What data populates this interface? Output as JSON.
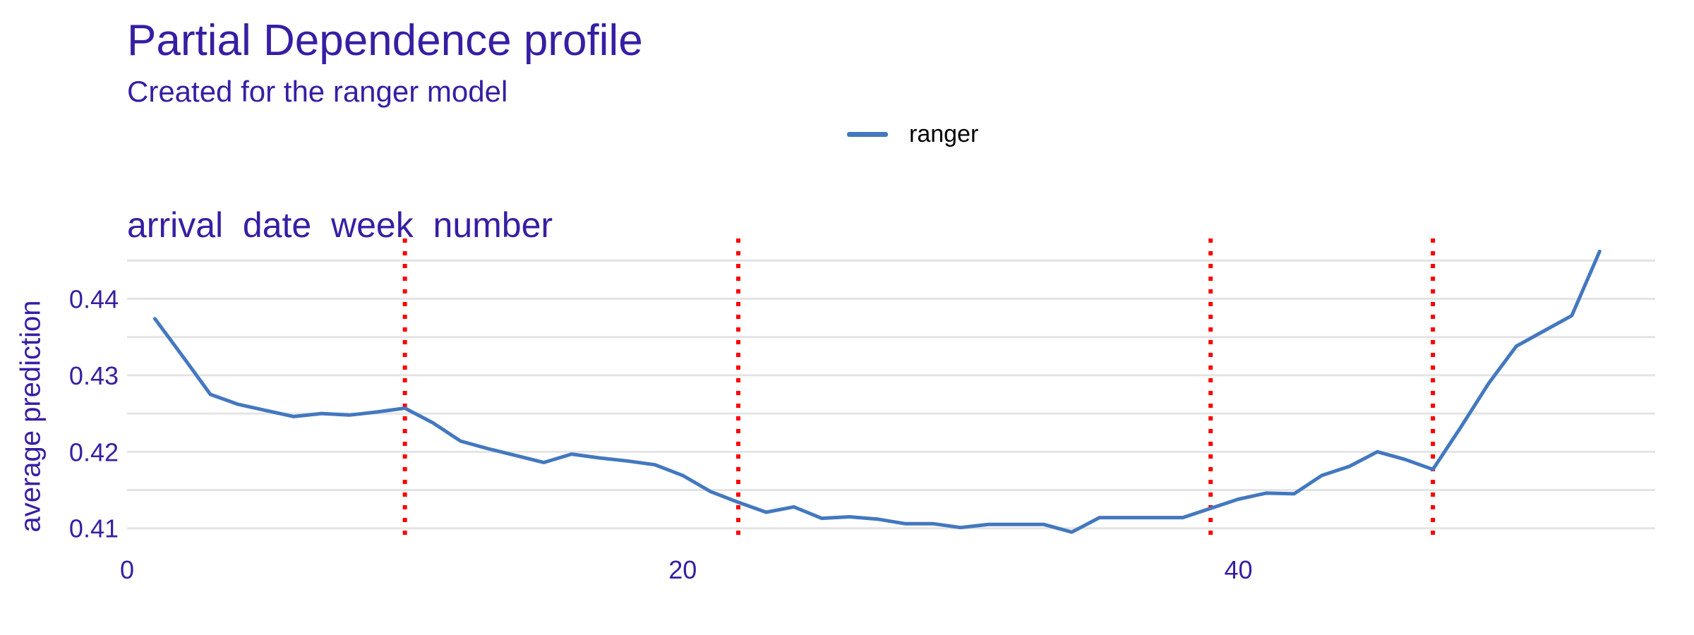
{
  "colors": {
    "text": "#371ea3",
    "line": "#4378bf",
    "cutoff": "#ff0000",
    "grid": "#e4e4e4",
    "background": "#ffffff"
  },
  "chart_data": {
    "type": "line",
    "title": "Partial Dependence profile",
    "subtitle": "Created for the ranger model",
    "panel_title": "arrival  date  week  number",
    "xlabel": "",
    "ylabel": "average prediction",
    "xlim": [
      0,
      55
    ],
    "ylim": [
      0.4085,
      0.4477
    ],
    "x_ticks": [
      0,
      20,
      40
    ],
    "y_ticks": [
      0.41,
      0.42,
      0.43,
      0.44
    ],
    "y_tick_labels": [
      "0.41",
      "0.42",
      "0.43",
      "0.44"
    ],
    "x_tick_labels": [
      "0",
      "20",
      "40"
    ],
    "grid": true,
    "legend": {
      "position": "top",
      "entries": [
        "ranger"
      ]
    },
    "vertical_cutoffs": [
      10,
      22,
      39,
      47
    ],
    "series": [
      {
        "name": "ranger",
        "x": [
          1,
          2,
          3,
          4,
          5,
          6,
          7,
          8,
          9,
          10,
          11,
          12,
          13,
          14,
          15,
          16,
          17,
          18,
          19,
          20,
          21,
          22,
          23,
          24,
          25,
          26,
          27,
          28,
          29,
          30,
          31,
          32,
          33,
          34,
          35,
          36,
          37,
          38,
          39,
          40,
          41,
          42,
          43,
          44,
          45,
          46,
          47,
          48,
          49,
          50,
          51,
          52,
          53
        ],
        "values": [
          0.4374,
          0.4325,
          0.4275,
          0.4262,
          0.4254,
          0.4246,
          0.425,
          0.4248,
          0.4252,
          0.4257,
          0.4238,
          0.4214,
          0.4204,
          0.4195,
          0.4186,
          0.4197,
          0.4192,
          0.4188,
          0.4183,
          0.4169,
          0.4148,
          0.4134,
          0.4121,
          0.4128,
          0.4113,
          0.4115,
          0.4112,
          0.4106,
          0.4106,
          0.4101,
          0.4105,
          0.4105,
          0.4105,
          0.4095,
          0.4114,
          0.4114,
          0.4114,
          0.4114,
          0.4126,
          0.4138,
          0.4146,
          0.4145,
          0.4169,
          0.4181,
          0.42,
          0.419,
          0.4177,
          0.4232,
          0.4289,
          0.4338,
          0.4358,
          0.4378,
          0.4462
        ]
      }
    ]
  }
}
